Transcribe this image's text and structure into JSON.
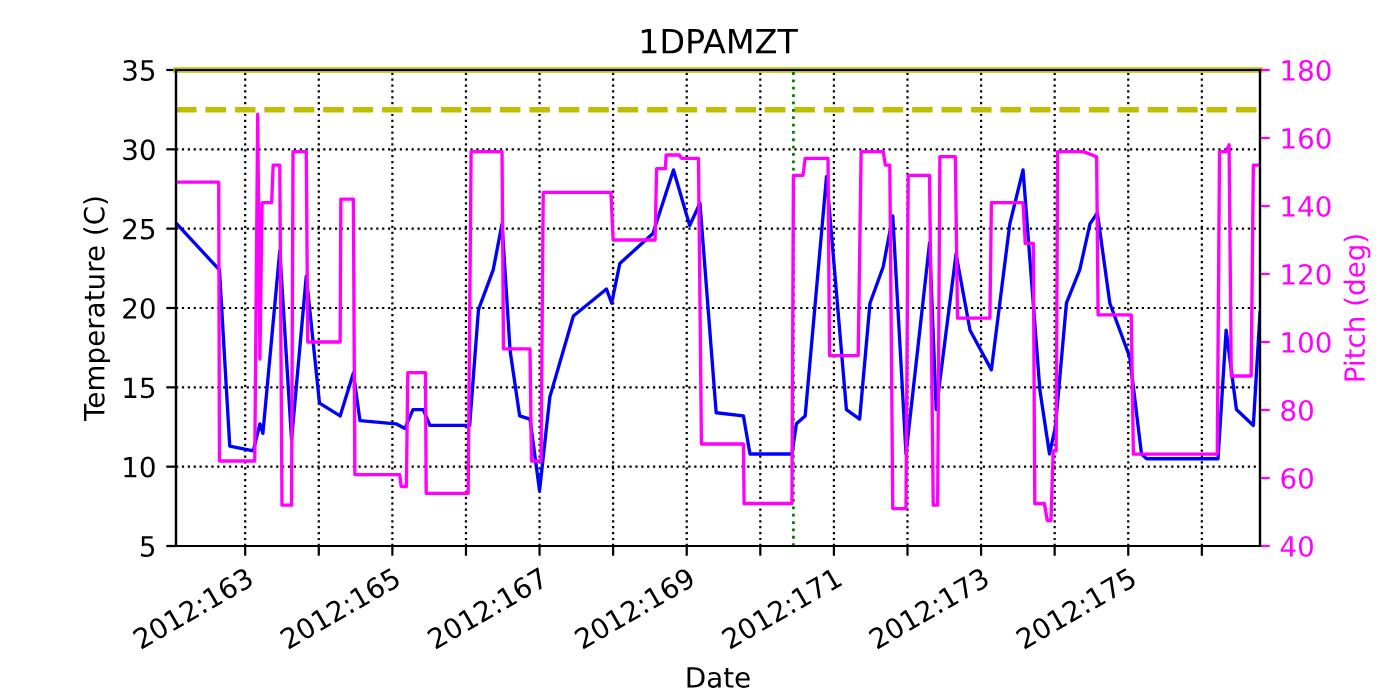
{
  "chart_data": {
    "type": "line",
    "title": "1DPAMZT",
    "xlabel": "Date",
    "ylabel": "Temperature (C)",
    "y2label": "Pitch (deg)",
    "xlim": [
      "2012-06-10T01:26",
      "2012-06-24T18:58"
    ],
    "xticks": [
      {
        "value": "2012-06-11",
        "label": "2012:163"
      },
      {
        "value": "2012-06-12",
        "label": null
      },
      {
        "value": "2012-06-13",
        "label": "2012:165"
      },
      {
        "value": "2012-06-14",
        "label": null
      },
      {
        "value": "2012-06-15",
        "label": "2012:167"
      },
      {
        "value": "2012-06-16",
        "label": null
      },
      {
        "value": "2012-06-17",
        "label": "2012:169"
      },
      {
        "value": "2012-06-18",
        "label": null
      },
      {
        "value": "2012-06-19",
        "label": "2012:171"
      },
      {
        "value": "2012-06-20",
        "label": null
      },
      {
        "value": "2012-06-21",
        "label": "2012:173"
      },
      {
        "value": "2012-06-22",
        "label": null
      },
      {
        "value": "2012-06-23",
        "label": "2012:175"
      },
      {
        "value": "2012-06-24",
        "label": null
      }
    ],
    "ylim": [
      5,
      35
    ],
    "yticks": [
      5,
      10,
      15,
      20,
      25,
      30,
      35
    ],
    "y2lim": [
      40,
      180
    ],
    "y2ticks": [
      40,
      60,
      80,
      100,
      120,
      140,
      160,
      180
    ],
    "grid": true,
    "legend": false,
    "marker": "none",
    "line_style": "solid",
    "ref_lines": [
      {
        "axis": "y",
        "value": 32.5,
        "label": null,
        "color": "#bfbf00",
        "line_style": "dashed"
      },
      {
        "axis": "y",
        "value": 35,
        "label": null,
        "color": "#bfbf00",
        "line_style": "solid"
      },
      {
        "axis": "x",
        "value": "2012-06-18T10:48",
        "label": null,
        "color": "#008000",
        "line_style": "dotted"
      }
    ],
    "series": [
      {
        "color": "#0000ff",
        "x": [
          "2012-06-10T01:41",
          "2012-06-10T15:36",
          "2012-06-10T18:58",
          "2012-06-11T02:38",
          "2012-06-11T04:48",
          "2012-06-11T05:46",
          "2012-06-11T11:17",
          "2012-06-11T15:07",
          "2012-06-11T19:55",
          "2012-06-12T00:14",
          "2012-06-12T06:58",
          "2012-06-12T11:17",
          "2012-06-12T13:26",
          "2012-06-13T01:12",
          "2012-06-13T04:05",
          "2012-06-13T06:43",
          "2012-06-13T10:05",
          "2012-06-13T12:14",
          "2012-06-14T01:12",
          "2012-06-14T04:05",
          "2012-06-14T08:53",
          "2012-06-14T11:46",
          "2012-06-14T14:24",
          "2012-06-14T17:31",
          "2012-06-14T20:53",
          "2012-06-15T00:00",
          "2012-06-15T03:22",
          "2012-06-15T11:02",
          "2012-06-15T21:50",
          "2012-06-15T23:31",
          "2012-06-16T02:10",
          "2012-06-16T12:58",
          "2012-06-16T19:41",
          "2012-06-17T00:58",
          "2012-06-17T04:19",
          "2012-06-17T09:36",
          "2012-06-17T18:29",
          "2012-06-17T20:38",
          "2012-06-18T10:19",
          "2012-06-18T11:46",
          "2012-06-18T14:38",
          "2012-06-18T21:36",
          "2012-06-19T04:05",
          "2012-06-19T08:24",
          "2012-06-19T11:46",
          "2012-06-19T16:05",
          "2012-06-19T19:12",
          "2012-06-19T23:31",
          "2012-06-20T07:12",
          "2012-06-20T09:22",
          "2012-06-20T15:50",
          "2012-06-20T20:24",
          "2012-06-21T03:22",
          "2012-06-21T09:22",
          "2012-06-21T13:41",
          "2012-06-21T19:12",
          "2012-06-21T22:19",
          "2012-06-22T00:14",
          "2012-06-22T03:50",
          "2012-06-22T08:10",
          "2012-06-22T11:31",
          "2012-06-22T13:55",
          "2012-06-22T18:00",
          "2012-06-23T00:29",
          "2012-06-23T04:19",
          "2012-06-23T06:00",
          "2012-06-24T05:17",
          "2012-06-24T07:55",
          "2012-06-24T11:17",
          "2012-06-24T16:48",
          "2012-06-24T18:58"
        ],
        "values": [
          25.3,
          22.4,
          11.3,
          11.0,
          12.7,
          12.1,
          23.6,
          11.7,
          22.0,
          14.0,
          13.2,
          15.9,
          12.9,
          12.7,
          12.4,
          13.6,
          13.6,
          12.6,
          12.6,
          19.9,
          22.4,
          25.3,
          17.3,
          13.2,
          13.0,
          8.5,
          14.4,
          19.5,
          21.2,
          20.3,
          22.8,
          24.7,
          28.7,
          25.2,
          26.6,
          13.4,
          13.2,
          10.8,
          10.8,
          12.7,
          13.2,
          28.3,
          13.6,
          13.0,
          20.3,
          22.6,
          25.8,
          10.8,
          24.1,
          13.6,
          23.4,
          18.6,
          16.1,
          25.3,
          28.7,
          14.8,
          10.8,
          12.5,
          20.3,
          22.4,
          25.3,
          26.0,
          20.3,
          16.9,
          10.8,
          10.5,
          10.5,
          18.6,
          13.6,
          12.6,
          19.7
        ]
      },
      {
        "color": "#ff00ff",
        "axis": "y2",
        "x": [
          "2012-06-10T01:41",
          "2012-06-10T15:22",
          "2012-06-10T15:36",
          "2012-06-11T03:07",
          "2012-06-11T04:05",
          "2012-06-11T04:48",
          "2012-06-11T05:31",
          "2012-06-11T08:38",
          "2012-06-11T09:07",
          "2012-06-11T11:17",
          "2012-06-11T12:00",
          "2012-06-11T15:07",
          "2012-06-11T15:36",
          "2012-06-11T19:55",
          "2012-06-11T20:24",
          "2012-06-12T06:58",
          "2012-06-12T07:12",
          "2012-06-12T11:17",
          "2012-06-12T11:46",
          "2012-06-13T02:24",
          "2012-06-13T02:53",
          "2012-06-13T04:34",
          "2012-06-13T05:02",
          "2012-06-13T10:48",
          "2012-06-13T11:02",
          "2012-06-14T00:43",
          "2012-06-14T01:41",
          "2012-06-14T11:46",
          "2012-06-14T12:14",
          "2012-06-14T20:53",
          "2012-06-14T21:22",
          "2012-06-15T00:29",
          "2012-06-15T01:12",
          "2012-06-15T23:17",
          "2012-06-16T00:00",
          "2012-06-16T13:41",
          "2012-06-16T14:10",
          "2012-06-16T17:02",
          "2012-06-16T17:17",
          "2012-06-16T21:36",
          "2012-06-16T22:19",
          "2012-06-17T03:50",
          "2012-06-17T04:48",
          "2012-06-17T18:29",
          "2012-06-17T18:43",
          "2012-06-18T10:19",
          "2012-06-18T10:48",
          "2012-06-18T13:55",
          "2012-06-18T14:38",
          "2012-06-18T22:05",
          "2012-06-18T22:34",
          "2012-06-19T07:55",
          "2012-06-19T08:53",
          "2012-06-19T16:05",
          "2012-06-19T16:48",
          "2012-06-19T18:14",
          "2012-06-19T19:12",
          "2012-06-19T23:31",
          "2012-06-20T00:14",
          "2012-06-20T07:12",
          "2012-06-20T08:24",
          "2012-06-20T09:50",
          "2012-06-20T10:34",
          "2012-06-20T15:36",
          "2012-06-20T16:19",
          "2012-06-21T02:53",
          "2012-06-21T03:22",
          "2012-06-21T13:41",
          "2012-06-21T14:24",
          "2012-06-21T17:02",
          "2012-06-21T17:31",
          "2012-06-21T20:38",
          "2012-06-21T21:36",
          "2012-06-21T22:48",
          "2012-06-21T23:31",
          "2012-06-22T00:29",
          "2012-06-22T00:58",
          "2012-06-22T09:22",
          "2012-06-22T13:41",
          "2012-06-22T14:10",
          "2012-06-23T00:58",
          "2012-06-23T01:41",
          "2012-06-24T05:02",
          "2012-06-24T05:46",
          "2012-06-24T07:55",
          "2012-06-24T08:53",
          "2012-06-24T09:36",
          "2012-06-24T16:05",
          "2012-06-24T16:48",
          "2012-06-24T18:58"
        ],
        "values": [
          147,
          147,
          65,
          65,
          167,
          95,
          141,
          141,
          152,
          152,
          52,
          52,
          156,
          156,
          100,
          100,
          142,
          142,
          61,
          61,
          57.5,
          57.5,
          91,
          91,
          55.5,
          55.5,
          156,
          156,
          98,
          98,
          65,
          65,
          144,
          144,
          130,
          130,
          151,
          151,
          155,
          155,
          154,
          154,
          70,
          70,
          52.5,
          52.5,
          149,
          149,
          154,
          154,
          96,
          96,
          156,
          156,
          152,
          152,
          51,
          51,
          149,
          149,
          52,
          52,
          154.5,
          154.5,
          107,
          107,
          141,
          141,
          129,
          129,
          52.5,
          52.5,
          47.5,
          47.5,
          68,
          68,
          156,
          156,
          154.5,
          108,
          108,
          67,
          67,
          156,
          156,
          158,
          90,
          90,
          152,
          152
        ]
      }
    ]
  }
}
